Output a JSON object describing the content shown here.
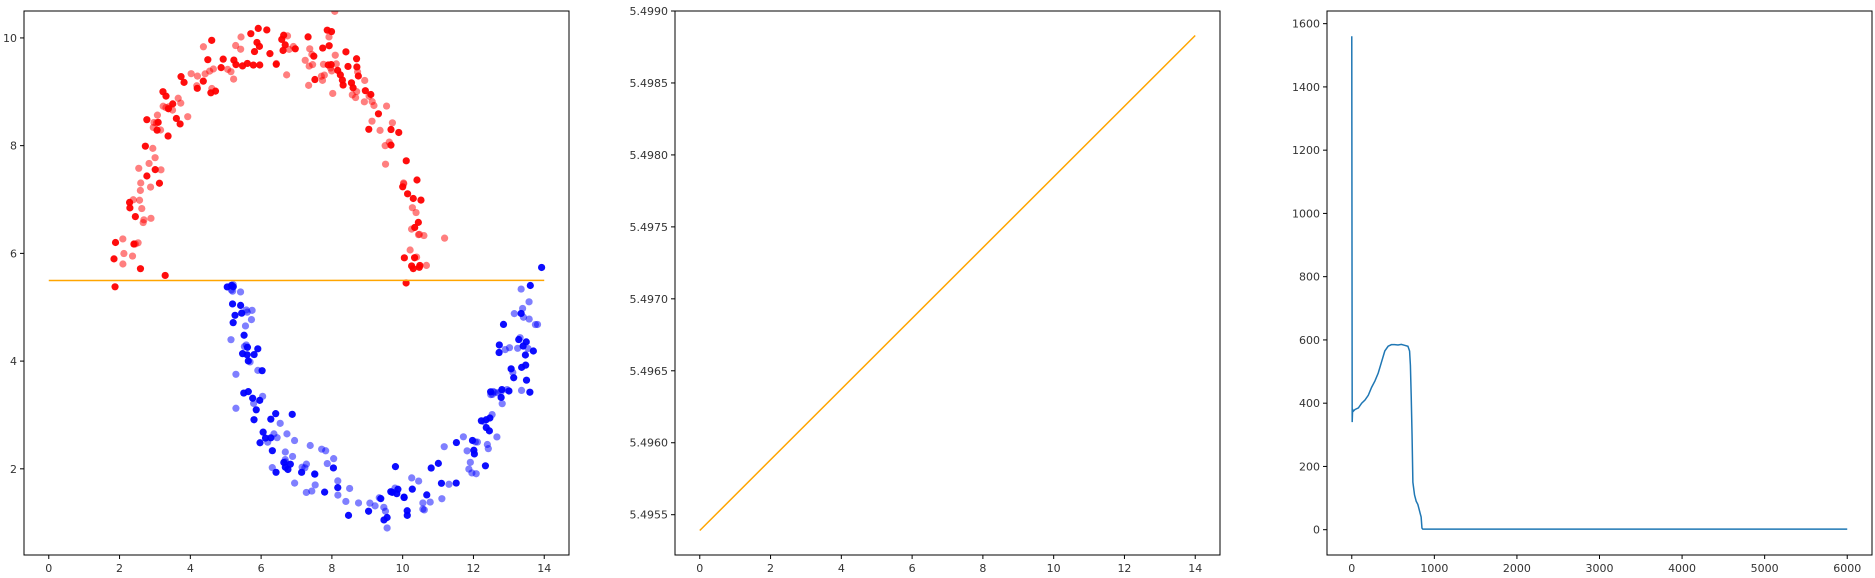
{
  "figure": {
    "background": "#ffffff"
  },
  "chart_data": [
    {
      "type": "scatter",
      "xlim": [
        -0.7,
        14.7
      ],
      "ylim": [
        0.4,
        10.5
      ],
      "xticks": [
        0,
        2,
        4,
        6,
        8,
        10,
        12,
        14
      ],
      "yticks": [
        2,
        4,
        6,
        8,
        10
      ],
      "grid": false,
      "series": [
        {
          "kind": "scatter",
          "color": "#ff0000",
          "center": [
            6.4,
            5.7
          ],
          "radius": 4.1,
          "angle_range": [
            0,
            180
          ],
          "count": 190,
          "noise": 0.26,
          "seed": 7
        },
        {
          "kind": "scatter",
          "color": "#0000ff",
          "center": [
            9.4,
            5.5
          ],
          "radius": 4.1,
          "angle_range": [
            180,
            360
          ],
          "count": 190,
          "noise": 0.26,
          "seed": 19
        },
        {
          "kind": "line",
          "color": "#ffa500",
          "x": [
            0,
            14
          ],
          "y": [
            5.4954,
            5.4988
          ]
        }
      ]
    },
    {
      "type": "line",
      "xlim": [
        -0.7,
        14.7
      ],
      "ylim": [
        5.49522,
        5.499
      ],
      "xticks": [
        0,
        2,
        4,
        6,
        8,
        10,
        12,
        14
      ],
      "yticks": [
        5.4955,
        5.496,
        5.4965,
        5.497,
        5.4975,
        5.498,
        5.4985,
        5.499
      ],
      "ytick_labels": [
        "5.4955",
        "5.4960",
        "5.4965",
        "5.4970",
        "5.4975",
        "5.4980",
        "5.4985",
        "5.4990"
      ],
      "grid": false,
      "series": [
        {
          "kind": "line",
          "color": "#ffa500",
          "x": [
            0,
            14
          ],
          "y": [
            5.49539,
            5.49883
          ]
        }
      ]
    },
    {
      "type": "line",
      "xlim": [
        -300,
        6300
      ],
      "ylim": [
        -80,
        1640
      ],
      "xticks": [
        0,
        1000,
        2000,
        3000,
        4000,
        5000,
        6000
      ],
      "yticks": [
        0,
        200,
        400,
        600,
        800,
        1000,
        1200,
        1400,
        1600
      ],
      "grid": false,
      "series": [
        {
          "kind": "line",
          "color": "#1f77b4",
          "x": [
            0,
            5,
            10,
            20,
            40,
            80,
            120,
            160,
            200,
            240,
            280,
            320,
            360,
            400,
            440,
            480,
            520,
            560,
            600,
            640,
            680,
            700,
            710,
            720,
            730,
            740,
            760,
            780,
            800,
            810,
            820,
            830,
            840,
            850,
            860,
            6000
          ],
          "y": [
            1560,
            340,
            380,
            375,
            380,
            385,
            400,
            410,
            425,
            450,
            470,
            495,
            530,
            565,
            580,
            585,
            585,
            584,
            586,
            583,
            580,
            565,
            520,
            420,
            300,
            150,
            110,
            90,
            80,
            70,
            60,
            50,
            40,
            5,
            2,
            2
          ]
        }
      ]
    }
  ]
}
